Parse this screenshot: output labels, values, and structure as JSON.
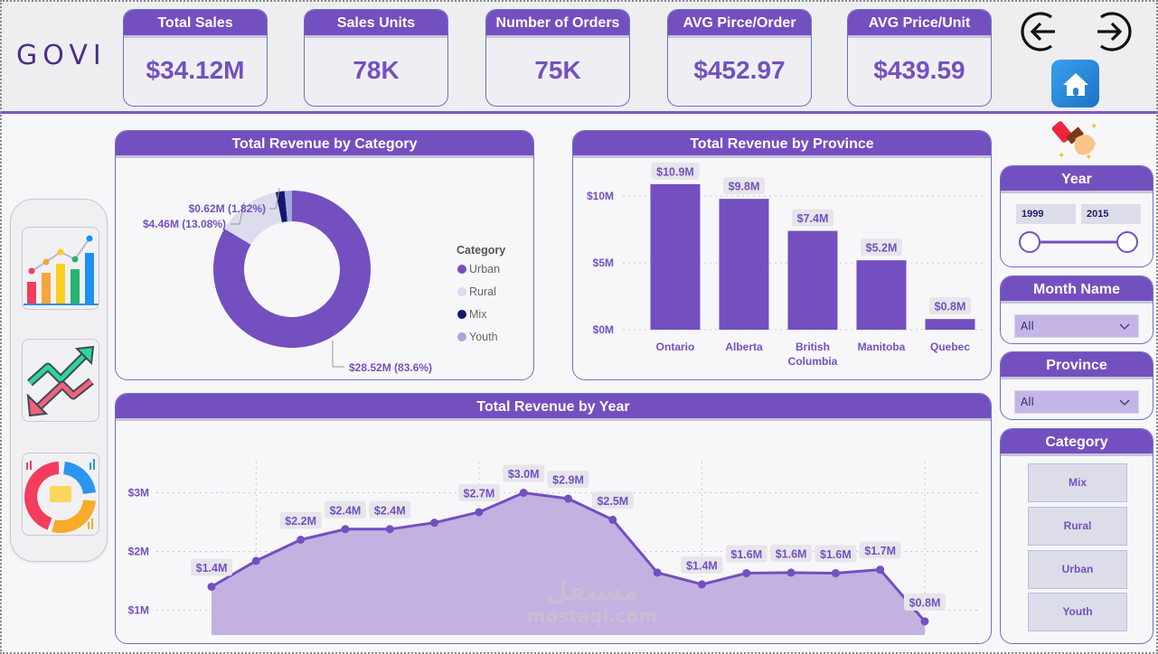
{
  "brand": {
    "logo_text": "GOVI"
  },
  "kpis": [
    {
      "label": "Total Sales",
      "value": "$34.12M"
    },
    {
      "label": "Sales Units",
      "value": "78K"
    },
    {
      "label": "Number of Orders",
      "value": "75K"
    },
    {
      "label": "AVG Pirce/Order",
      "value": "$452.97"
    },
    {
      "label": "AVG Price/Unit",
      "value": "$439.59"
    }
  ],
  "nav": {
    "back_icon": "arrow-left-circle-icon",
    "forward_icon": "arrow-right-circle-icon",
    "home_icon": "home-icon",
    "clear_filters_icon": "eraser-brush-icon",
    "pages": [
      {
        "icon": "bar-line-chart-icon"
      },
      {
        "icon": "trend-arrows-icon"
      },
      {
        "icon": "donut-chart-icon"
      }
    ]
  },
  "colors": {
    "accent": "#744fc0",
    "header_bg": "#eeeef1",
    "urban": "#744fc0",
    "rural": "#dcdcec",
    "mix": "#13176e",
    "youth": "#a3a9dd",
    "area_fill": "#c3b1e1",
    "label_bg": "#e6e6ea"
  },
  "slicers": {
    "year": {
      "title": "Year",
      "min_value": "1999",
      "max_value": "2015"
    },
    "month": {
      "title": "Month Name",
      "selected": "All"
    },
    "province": {
      "title": "Province",
      "selected": "All"
    },
    "category": {
      "title": "Category",
      "options": [
        "Mix",
        "Rural",
        "Urban",
        "Youth"
      ]
    }
  },
  "watermark": {
    "text": "mostaql.com",
    "arabic": "مستقل"
  },
  "chart_data": [
    {
      "type": "pie",
      "variant": "donut",
      "title": "Total Revenue by Category",
      "legend_title": "Category",
      "legend_position": "right",
      "categories": [
        "Urban",
        "Rural",
        "Mix",
        "Youth"
      ],
      "values": [
        28.52,
        4.46,
        0.62,
        0.52
      ],
      "values_note": "Youth value not printed; estimated as remainder of total",
      "labels": [
        "$28.52M (83.6%)",
        "$4.46M (13.08%)",
        "$0.62M (1.82%)",
        null
      ],
      "unit": "$M"
    },
    {
      "type": "bar",
      "title": "Total Revenue by Province",
      "categories": [
        "Ontario",
        "Alberta",
        "British Columbia",
        "Manitoba",
        "Quebec"
      ],
      "category_lines": [
        [
          "Ontario"
        ],
        [
          "Alberta"
        ],
        [
          "British",
          "Columbia"
        ],
        [
          "Manitoba"
        ],
        [
          "Quebec"
        ]
      ],
      "values": [
        10.9,
        9.8,
        7.4,
        5.2,
        0.8
      ],
      "labels": [
        "$10.9M",
        "$9.8M",
        "$7.4M",
        "$5.2M",
        "$0.8M"
      ],
      "yticks": [
        0,
        5,
        10
      ],
      "ytick_labels": [
        "$0M",
        "$5M",
        "$10M"
      ],
      "ylim": [
        0,
        11.5
      ],
      "xlabel": "",
      "ylabel": "",
      "grid": true
    },
    {
      "type": "area",
      "title": "Total Revenue by Year",
      "x": [
        1999,
        2000,
        2001,
        2002,
        2003,
        2004,
        2005,
        2006,
        2007,
        2008,
        2009,
        2010,
        2011,
        2012,
        2013,
        2014,
        2015
      ],
      "values": [
        1.4,
        1.84,
        2.2,
        2.38,
        2.38,
        2.49,
        2.67,
        3.0,
        2.9,
        2.54,
        1.64,
        1.44,
        1.63,
        1.64,
        1.63,
        1.69,
        0.81
      ],
      "labels": [
        "$1.4M",
        null,
        "$2.2M",
        "$2.4M",
        "$2.4M",
        null,
        "$2.7M",
        "$3.0M",
        "$2.9M",
        "$2.5M",
        null,
        "$1.4M",
        "$1.6M",
        "$1.6M",
        "$1.6M",
        "$1.7M",
        "$0.8M"
      ],
      "xticks": [
        2000,
        2005,
        2010,
        2015
      ],
      "yticks": [
        1,
        2,
        3
      ],
      "ytick_labels": [
        "$1M",
        "$2M",
        "$3M"
      ],
      "ylim": [
        0.5,
        3.5
      ],
      "xlabel": "",
      "ylabel": "",
      "grid": true
    }
  ]
}
